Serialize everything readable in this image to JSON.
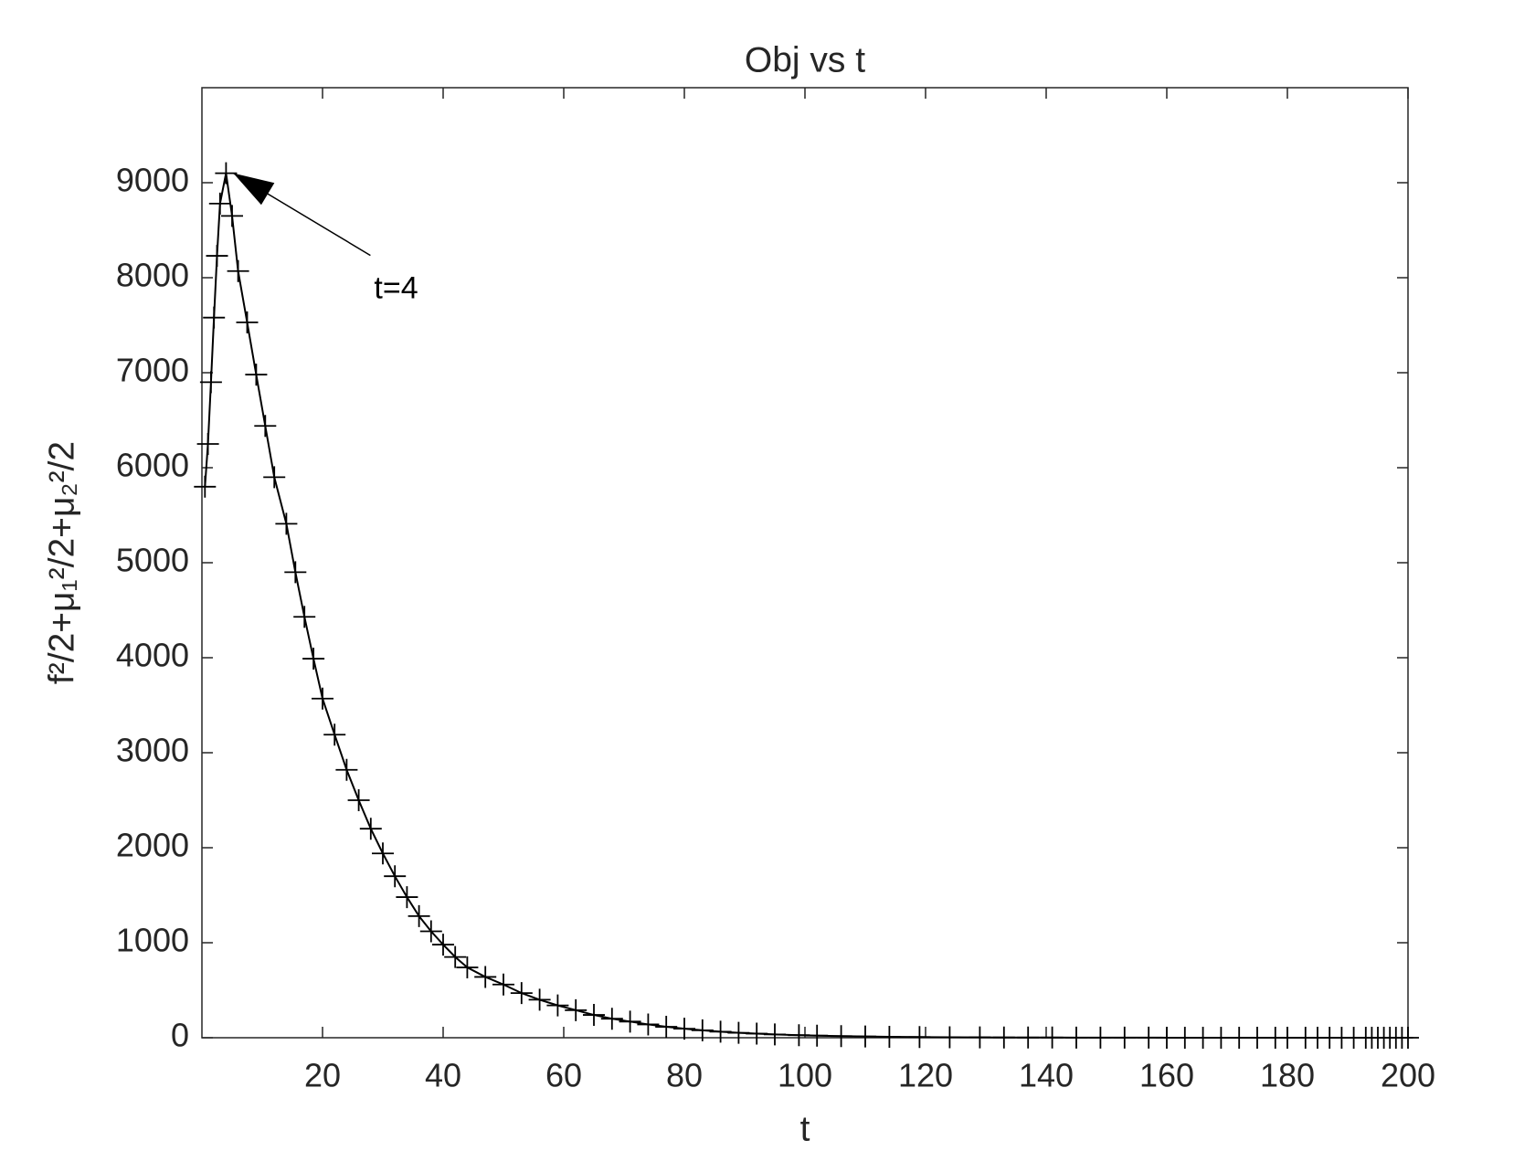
{
  "chart_data": {
    "type": "line",
    "title": "Obj vs t",
    "x_label": "t",
    "y_label": "f²/2+μ₁²/2+μ₂²/2",
    "annotation": "t=4",
    "xlim": [
      0,
      200
    ],
    "ylim": [
      0,
      10000
    ],
    "xticks": [
      20,
      40,
      60,
      80,
      100,
      120,
      140,
      160,
      180,
      200
    ],
    "yticks": [
      0,
      1000,
      2000,
      3000,
      4000,
      5000,
      6000,
      7000,
      8000,
      9000
    ],
    "grid": false,
    "series": [
      {
        "name": "Obj",
        "color": "#000000",
        "marker": "+",
        "x": [
          0.5,
          1,
          1.5,
          2,
          2.5,
          3,
          4,
          5,
          6,
          7.5,
          9,
          10.5,
          12,
          14,
          15.5,
          17,
          18.5,
          20,
          22,
          24,
          26,
          28,
          30,
          32,
          34,
          36,
          38,
          40,
          42,
          44,
          47,
          50,
          53,
          56,
          59,
          62,
          65,
          68,
          71,
          74,
          77,
          80,
          83,
          86,
          89,
          92,
          95,
          99,
          102,
          106,
          110,
          114,
          119,
          124,
          129,
          133,
          137,
          141,
          145,
          149,
          153,
          157,
          160,
          163,
          166,
          169,
          172,
          175,
          178,
          180,
          183,
          185,
          187,
          189,
          191,
          193,
          194,
          195,
          196,
          197,
          198,
          199,
          200
        ],
        "values": [
          5800,
          6250,
          6900,
          7580,
          8230,
          8780,
          9100,
          8650,
          8070,
          7530,
          6980,
          6440,
          5900,
          5410,
          4900,
          4430,
          3990,
          3570,
          3190,
          2820,
          2500,
          2200,
          1940,
          1700,
          1480,
          1280,
          1120,
          980,
          850,
          740,
          640,
          560,
          470,
          400,
          340,
          290,
          240,
          200,
          170,
          140,
          115,
          95,
          78,
          64,
          52,
          43,
          35,
          27,
          22,
          17,
          13,
          10,
          7,
          5,
          4,
          3,
          2,
          2,
          1,
          1,
          1,
          1,
          0.5,
          0.5,
          0,
          0,
          0,
          0,
          0,
          0,
          0,
          0,
          0,
          0,
          0,
          0,
          0,
          0,
          0,
          0,
          0,
          0,
          0
        ]
      }
    ]
  }
}
